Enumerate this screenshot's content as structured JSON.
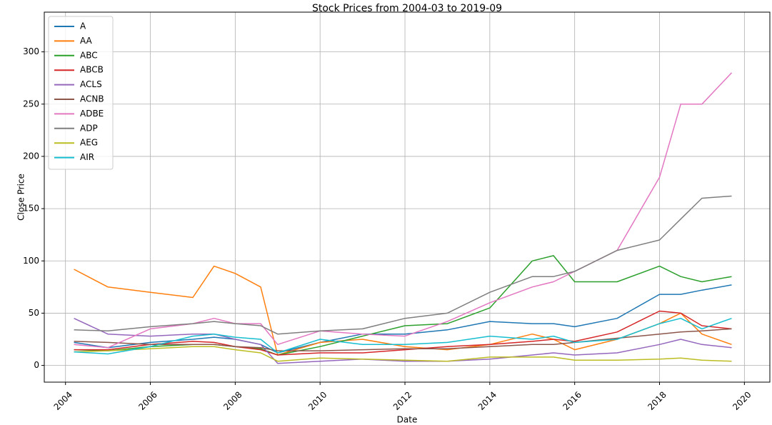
{
  "chart_data": {
    "type": "line",
    "title": "Stock Prices from 2004-03 to 2019-09",
    "xlabel": "Date",
    "ylabel": "Close Price",
    "x": [
      2004.2,
      2005,
      2006,
      2007,
      2007.5,
      2008,
      2008.6,
      2009,
      2010,
      2011,
      2012,
      2013,
      2014,
      2015,
      2015.5,
      2016,
      2017,
      2018,
      2018.5,
      2019,
      2019.7
    ],
    "xlim": [
      2003.5,
      2020.6
    ],
    "xticks": [
      2004,
      2006,
      2008,
      2010,
      2012,
      2014,
      2016,
      2018,
      2020
    ],
    "ylim": [
      -16,
      338
    ],
    "yticks": [
      0,
      50,
      100,
      150,
      200,
      250,
      300
    ],
    "grid": true,
    "legend": "upper left",
    "series": [
      {
        "name": "A",
        "color": "#1f77b4",
        "values": [
          22,
          17,
          22,
          25,
          27,
          25,
          20,
          12,
          22,
          30,
          30,
          34,
          42,
          40,
          40,
          37,
          45,
          68,
          68,
          72,
          77
        ]
      },
      {
        "name": "AA",
        "color": "#ff7f0e",
        "values": [
          92,
          75,
          70,
          65,
          95,
          88,
          75,
          10,
          22,
          25,
          18,
          15,
          20,
          30,
          25,
          15,
          25,
          40,
          50,
          30,
          20
        ]
      },
      {
        "name": "ABC",
        "color": "#2ca02c",
        "values": [
          15,
          14,
          18,
          20,
          20,
          18,
          16,
          10,
          18,
          28,
          38,
          40,
          55,
          100,
          105,
          80,
          80,
          95,
          85,
          80,
          85
        ]
      },
      {
        "name": "ABCB",
        "color": "#d62728",
        "values": [
          15,
          15,
          20,
          23,
          22,
          18,
          15,
          10,
          12,
          12,
          15,
          18,
          20,
          23,
          25,
          23,
          32,
          52,
          50,
          38,
          35
        ]
      },
      {
        "name": "ACLS",
        "color": "#9467bd",
        "values": [
          45,
          30,
          28,
          30,
          30,
          25,
          20,
          2,
          4,
          6,
          4,
          4,
          6,
          10,
          12,
          10,
          12,
          20,
          25,
          20,
          17
        ]
      },
      {
        "name": "ACNB",
        "color": "#8c564b",
        "values": [
          23,
          22,
          20,
          20,
          20,
          18,
          17,
          14,
          14,
          15,
          16,
          16,
          18,
          20,
          20,
          22,
          26,
          30,
          32,
          33,
          35
        ]
      },
      {
        "name": "ADBE",
        "color": "#e377c2",
        "values": [
          20,
          17,
          35,
          40,
          45,
          40,
          40,
          20,
          33,
          30,
          28,
          42,
          60,
          75,
          80,
          90,
          110,
          180,
          250,
          250,
          280
        ]
      },
      {
        "name": "ADP",
        "color": "#7f7f7f",
        "values": [
          34,
          33,
          37,
          40,
          42,
          40,
          38,
          30,
          33,
          35,
          45,
          50,
          70,
          85,
          85,
          90,
          110,
          120,
          140,
          160,
          162
        ]
      },
      {
        "name": "AEG",
        "color": "#bcbd22",
        "values": [
          13,
          14,
          16,
          18,
          18,
          15,
          12,
          4,
          7,
          6,
          5,
          4,
          8,
          8,
          8,
          5,
          5,
          6,
          7,
          5,
          4
        ]
      },
      {
        "name": "AIR",
        "color": "#17becf",
        "values": [
          13,
          11,
          18,
          28,
          30,
          27,
          25,
          12,
          25,
          20,
          20,
          22,
          28,
          25,
          28,
          22,
          25,
          40,
          45,
          35,
          45
        ]
      }
    ]
  }
}
